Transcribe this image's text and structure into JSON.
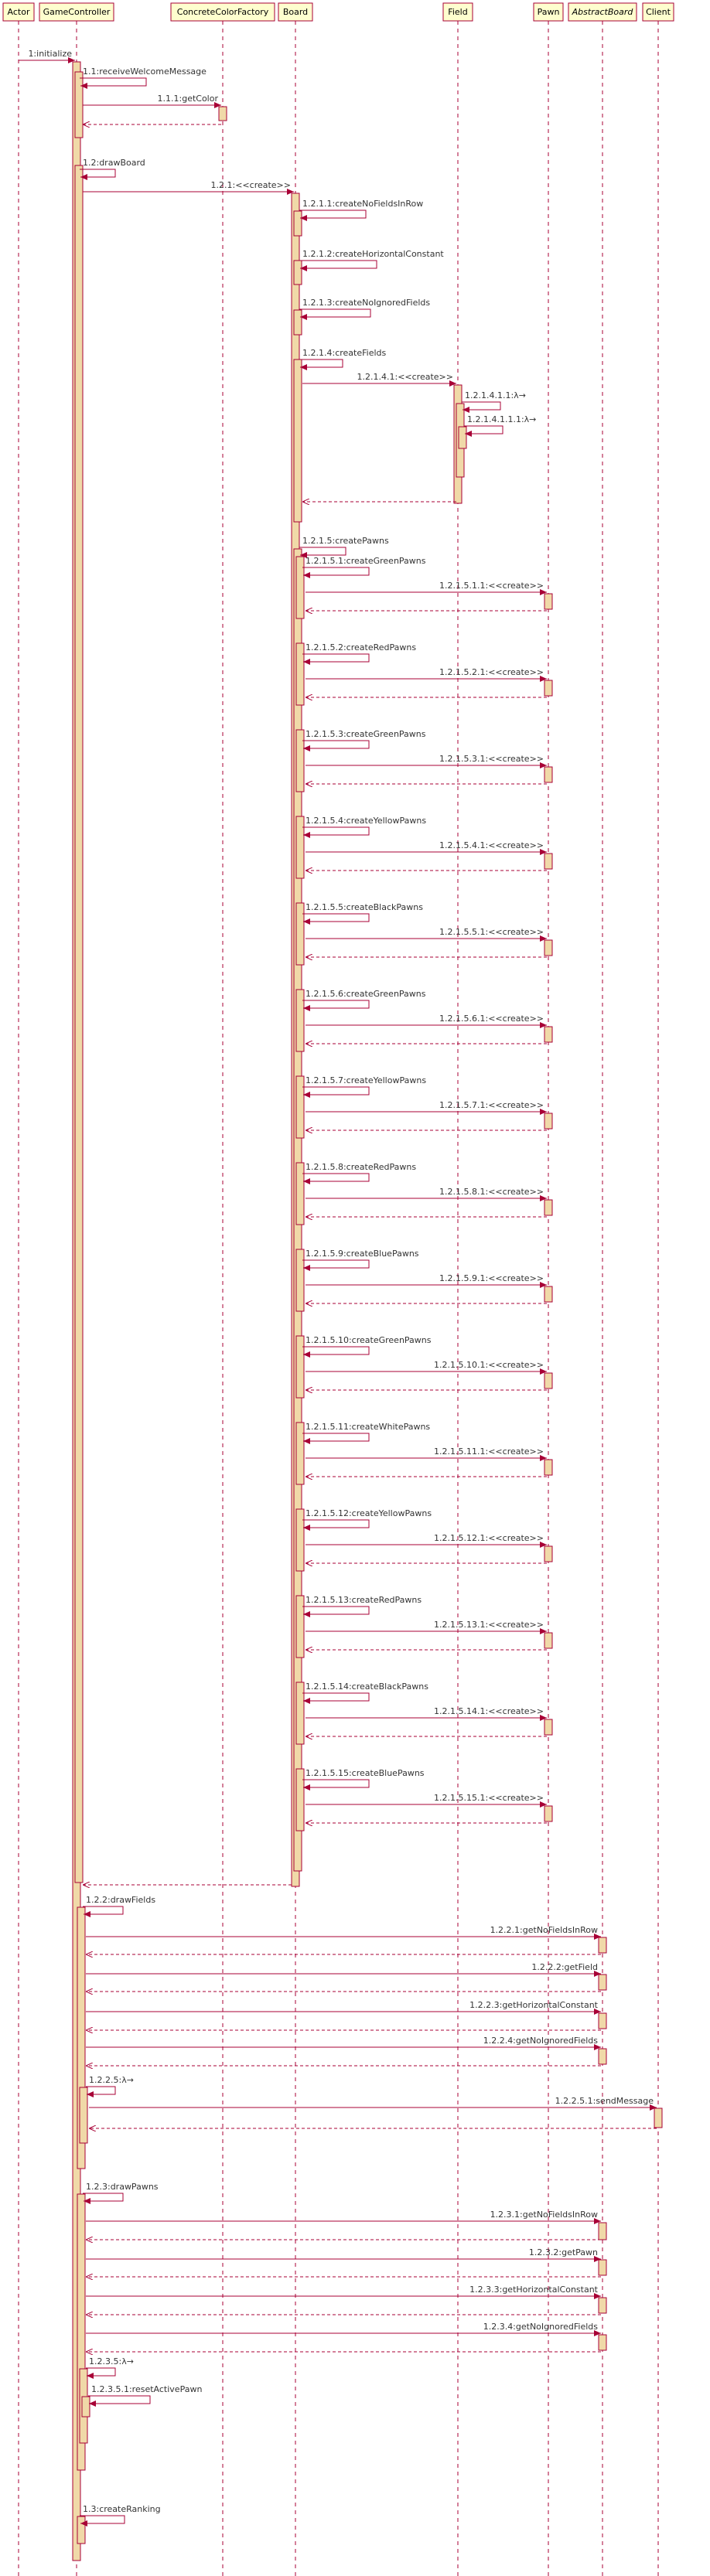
{
  "diagram": {
    "type": "uml-sequence",
    "colors": {
      "participant_fill": "#FEFECE",
      "participant_border": "#A80036",
      "activation_fill": "#F0D9A8",
      "lifeline": "#A80036",
      "arrow": "#A80036"
    },
    "participants": [
      {
        "id": "actor",
        "label": "Actor",
        "italic": false
      },
      {
        "id": "gc",
        "label": "GameController",
        "italic": false
      },
      {
        "id": "ccf",
        "label": "ConcreteColorFactory",
        "italic": false
      },
      {
        "id": "board",
        "label": "Board",
        "italic": false
      },
      {
        "id": "field",
        "label": "Field",
        "italic": false
      },
      {
        "id": "pawn",
        "label": "Pawn",
        "italic": false
      },
      {
        "id": "ab",
        "label": "AbstractBoard",
        "italic": true
      },
      {
        "id": "client",
        "label": "Client",
        "italic": false
      }
    ],
    "messages": [
      {
        "label": "1:initialize"
      },
      {
        "label": "1.1:receiveWelcomeMessage"
      },
      {
        "label": "1.1.1:getColor"
      },
      {
        "label": "1.2:drawBoard"
      },
      {
        "label": "1.2.1:<<create>>"
      },
      {
        "label": "1.2.1.1:createNoFieldsInRow"
      },
      {
        "label": "1.2.1.2:createHorizontalConstant"
      },
      {
        "label": "1.2.1.3:createNoIgnoredFields"
      },
      {
        "label": "1.2.1.4:createFields"
      },
      {
        "label": "1.2.1.4.1:<<create>>"
      },
      {
        "label": "1.2.1.4.1.1:λ→"
      },
      {
        "label": "1.2.1.4.1.1.1:λ→"
      },
      {
        "label": "1.2.1.5:createPawns"
      },
      {
        "label": "1.2.1.5.1:createGreenPawns"
      },
      {
        "label": "1.2.1.5.1.1:<<create>>"
      },
      {
        "label": "1.2.1.5.2:createRedPawns"
      },
      {
        "label": "1.2.1.5.2.1:<<create>>"
      },
      {
        "label": "1.2.1.5.3:createGreenPawns"
      },
      {
        "label": "1.2.1.5.3.1:<<create>>"
      },
      {
        "label": "1.2.1.5.4:createYellowPawns"
      },
      {
        "label": "1.2.1.5.4.1:<<create>>"
      },
      {
        "label": "1.2.1.5.5:createBlackPawns"
      },
      {
        "label": "1.2.1.5.5.1:<<create>>"
      },
      {
        "label": "1.2.1.5.6:createGreenPawns"
      },
      {
        "label": "1.2.1.5.6.1:<<create>>"
      },
      {
        "label": "1.2.1.5.7:createYellowPawns"
      },
      {
        "label": "1.2.1.5.7.1:<<create>>"
      },
      {
        "label": "1.2.1.5.8:createRedPawns"
      },
      {
        "label": "1.2.1.5.8.1:<<create>>"
      },
      {
        "label": "1.2.1.5.9:createBluePawns"
      },
      {
        "label": "1.2.1.5.9.1:<<create>>"
      },
      {
        "label": "1.2.1.5.10:createGreenPawns"
      },
      {
        "label": "1.2.1.5.10.1:<<create>>"
      },
      {
        "label": "1.2.1.5.11:createWhitePawns"
      },
      {
        "label": "1.2.1.5.11.1:<<create>>"
      },
      {
        "label": "1.2.1.5.12:createYellowPawns"
      },
      {
        "label": "1.2.1.5.12.1:<<create>>"
      },
      {
        "label": "1.2.1.5.13:createRedPawns"
      },
      {
        "label": "1.2.1.5.13.1:<<create>>"
      },
      {
        "label": "1.2.1.5.14:createBlackPawns"
      },
      {
        "label": "1.2.1.5.14.1:<<create>>"
      },
      {
        "label": "1.2.1.5.15:createBluePawns"
      },
      {
        "label": "1.2.1.5.15.1:<<create>>"
      },
      {
        "label": "1.2.2:drawFields"
      },
      {
        "label": "1.2.2.1:getNoFieldsInRow"
      },
      {
        "label": "1.2.2.2:getField"
      },
      {
        "label": "1.2.2.3:getHorizontalConstant"
      },
      {
        "label": "1.2.2.4:getNoIgnoredFields"
      },
      {
        "label": "1.2.2.5:λ→"
      },
      {
        "label": "1.2.2.5.1:sendMessage"
      },
      {
        "label": "1.2.3:drawPawns"
      },
      {
        "label": "1.2.3.1:getNoFieldsInRow"
      },
      {
        "label": "1.2.3.2:getPawn"
      },
      {
        "label": "1.2.3.3:getHorizontalConstant"
      },
      {
        "label": "1.2.3.4:getNoIgnoredFields"
      },
      {
        "label": "1.2.3.5:λ→"
      },
      {
        "label": "1.2.3.5.1:resetActivePawn"
      },
      {
        "label": "1.3:createRanking"
      }
    ]
  }
}
